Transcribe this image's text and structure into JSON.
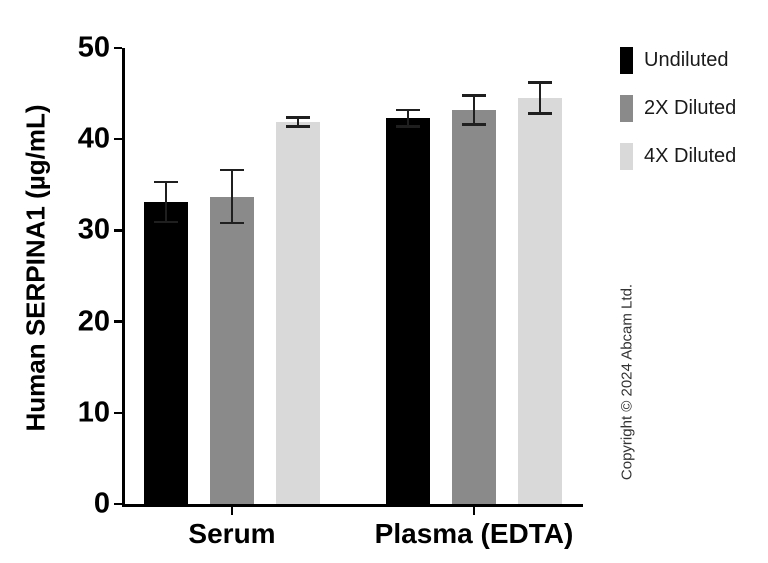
{
  "chart_data": {
    "type": "bar",
    "title": "",
    "xlabel": "",
    "ylabel": "Human SERPINA1 (µg/mL)",
    "ylim": [
      0,
      50
    ],
    "yticks": [
      0,
      10,
      20,
      30,
      40,
      50
    ],
    "categories": [
      "Serum",
      "Plasma (EDTA)"
    ],
    "series": [
      {
        "name": "Undiluted",
        "color": "#000000",
        "values": [
          33.1,
          42.3
        ],
        "errors": [
          2.2,
          0.9
        ]
      },
      {
        "name": "2X Diluted",
        "color": "#8a8a8a",
        "values": [
          33.7,
          43.2
        ],
        "errors": [
          2.9,
          1.6
        ]
      },
      {
        "name": "4X Diluted",
        "color": "#d9d9d9",
        "values": [
          41.9,
          44.5
        ],
        "errors": [
          0.5,
          1.7
        ]
      }
    ],
    "grid": false,
    "legend_position": "right",
    "axis_color": "#000000",
    "error_bar_color": "#1f1f1f"
  },
  "copyright": "Copyright © 2024 Abcam Ltd."
}
